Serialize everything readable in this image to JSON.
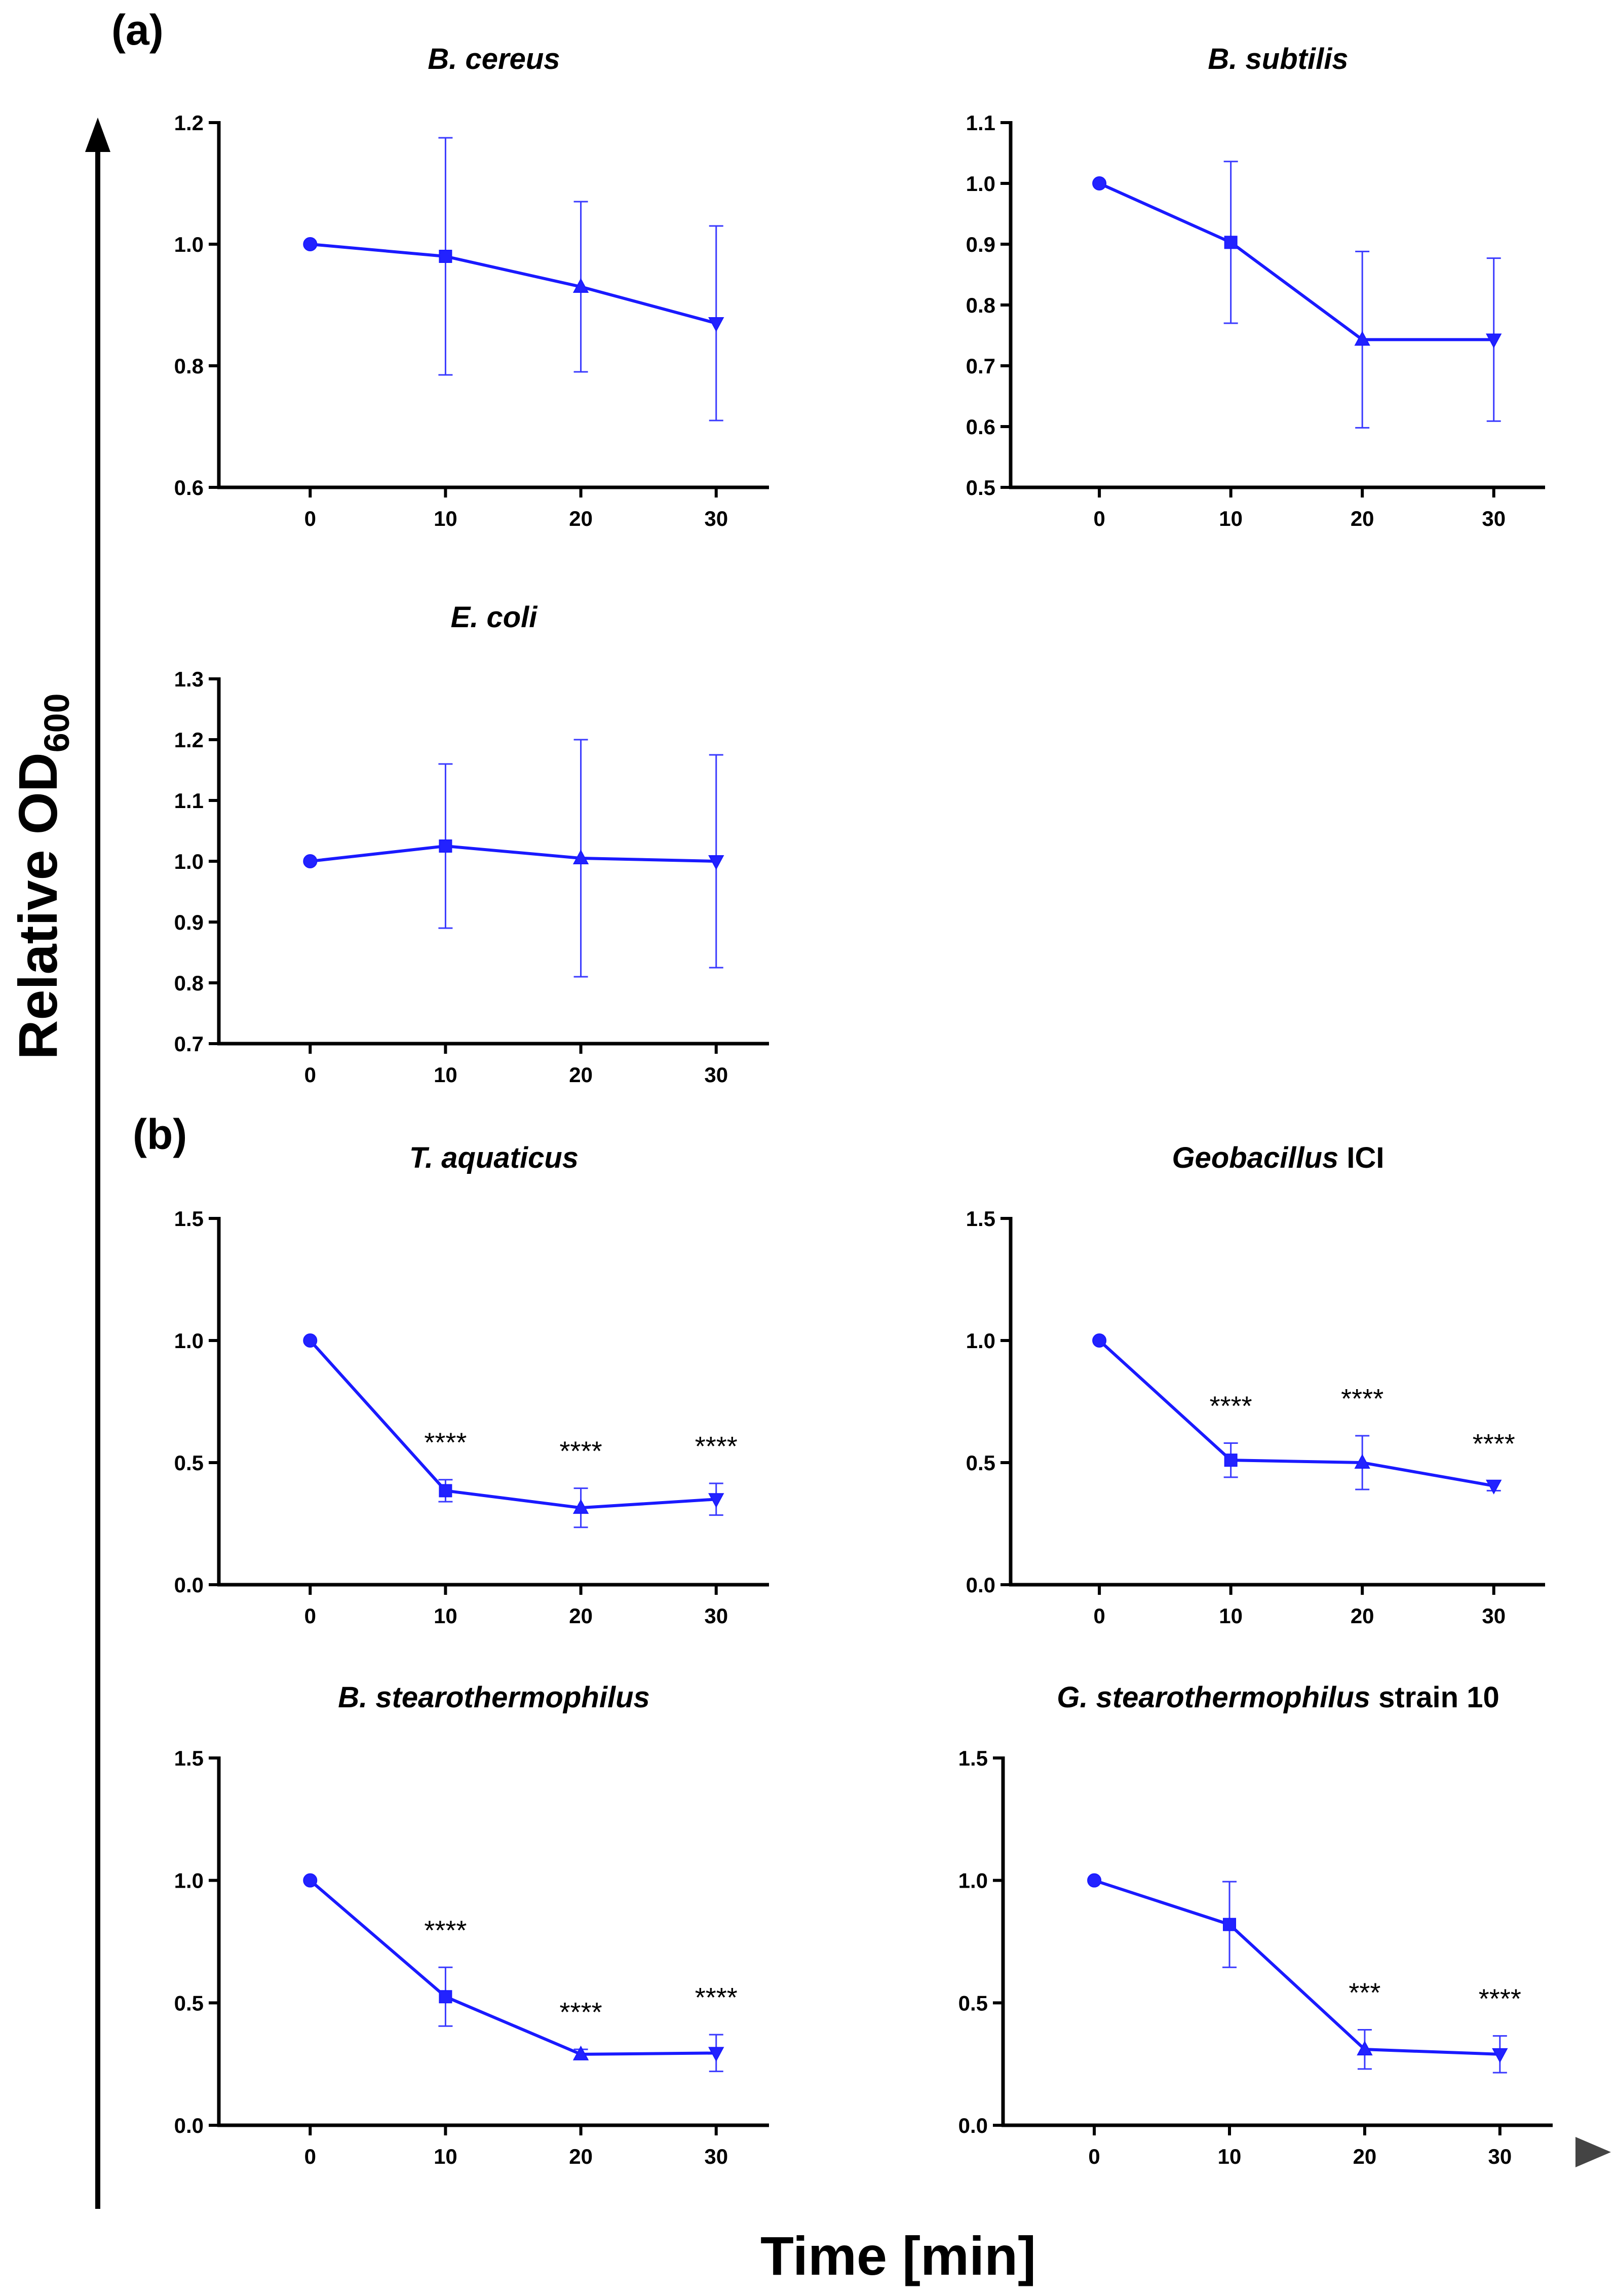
{
  "panel_labels": [
    "(a)",
    "(b)"
  ],
  "y_axis_title": {
    "main": "Relative OD",
    "subscript": "600"
  },
  "x_axis_title": "Time [min]",
  "colors": {
    "series": "#1a1aff",
    "axis": "#000000"
  },
  "chart_data": [
    {
      "id": "b-cereus",
      "type": "line",
      "title_italic": "B. cereus",
      "title_rest": "",
      "x": [
        0,
        10,
        20,
        30
      ],
      "values": [
        1.0,
        0.98,
        0.93,
        0.87
      ],
      "err": [
        0,
        0.195,
        0.14,
        0.16
      ],
      "markers": [
        "circle",
        "square",
        "triangle-up",
        "triangle-down"
      ],
      "ylim": [
        0.6,
        1.2
      ],
      "yticks": [
        0.6,
        0.8,
        1.0,
        1.2
      ],
      "ytick_labels": [
        "0.6",
        "0.8",
        "1.0",
        "1.2"
      ],
      "xticks": [
        "0",
        "10",
        "20",
        "30"
      ],
      "significance": [
        "",
        "",
        "",
        ""
      ]
    },
    {
      "id": "b-subtilis",
      "type": "line",
      "title_italic": "B. subtilis",
      "title_rest": "",
      "x": [
        0,
        10,
        20,
        30
      ],
      "values": [
        1.0,
        0.903,
        0.743,
        0.743
      ],
      "err": [
        0,
        0.133,
        0.145,
        0.134
      ],
      "markers": [
        "circle",
        "square",
        "triangle-up",
        "triangle-down"
      ],
      "ylim": [
        0.5,
        1.1
      ],
      "yticks": [
        0.5,
        0.6,
        0.7,
        0.8,
        0.9,
        1.0,
        1.1
      ],
      "ytick_labels": [
        "0.5",
        "0.6",
        "0.7",
        "0.8",
        "0.9",
        "1.0",
        "1.1"
      ],
      "xticks": [
        "0",
        "10",
        "20",
        "30"
      ],
      "significance": [
        "",
        "",
        "",
        ""
      ]
    },
    {
      "id": "e-coli",
      "type": "line",
      "title_italic": "E. coli",
      "title_rest": "",
      "x": [
        0,
        10,
        20,
        30
      ],
      "values": [
        1.0,
        1.025,
        1.005,
        1.0
      ],
      "err": [
        0,
        0.135,
        0.195,
        0.175
      ],
      "markers": [
        "circle",
        "square",
        "triangle-up",
        "triangle-down"
      ],
      "ylim": [
        0.7,
        1.3
      ],
      "yticks": [
        0.7,
        0.8,
        0.9,
        1.0,
        1.1,
        1.2,
        1.3
      ],
      "ytick_labels": [
        "0.7",
        "0.8",
        "0.9",
        "1.0",
        "1.1",
        "1.2",
        "1.3"
      ],
      "xticks": [
        "0",
        "10",
        "20",
        "30"
      ],
      "significance": [
        "",
        "",
        "",
        ""
      ]
    },
    {
      "id": "t-aquaticus",
      "type": "line",
      "title_italic": "T. aquaticus",
      "title_rest": "",
      "x": [
        0,
        10,
        20,
        30
      ],
      "values": [
        1.0,
        0.385,
        0.315,
        0.35
      ],
      "err": [
        0,
        0.045,
        0.08,
        0.065
      ],
      "markers": [
        "circle",
        "square",
        "triangle-up",
        "triangle-down"
      ],
      "ylim": [
        0.0,
        1.5
      ],
      "yticks": [
        0.0,
        0.5,
        1.0,
        1.5
      ],
      "ytick_labels": [
        "0.0",
        "0.5",
        "1.0",
        "1.5"
      ],
      "xticks": [
        "0",
        "10",
        "20",
        "30"
      ],
      "significance": [
        "",
        "****",
        "****",
        "****"
      ]
    },
    {
      "id": "geobacillus-ici",
      "type": "line",
      "title_italic": "Geobacillus",
      "title_rest": " ICI",
      "x": [
        0,
        10,
        20,
        30
      ],
      "values": [
        1.0,
        0.51,
        0.5,
        0.405
      ],
      "err": [
        0,
        0.07,
        0.11,
        0.02
      ],
      "markers": [
        "circle",
        "square",
        "triangle-up",
        "triangle-down"
      ],
      "ylim": [
        0.0,
        1.5
      ],
      "yticks": [
        0.0,
        0.5,
        1.0,
        1.5
      ],
      "ytick_labels": [
        "0.0",
        "0.5",
        "1.0",
        "1.5"
      ],
      "xticks": [
        "0",
        "10",
        "20",
        "30"
      ],
      "significance": [
        "",
        "****",
        "****",
        "****"
      ]
    },
    {
      "id": "b-stearothermophilus",
      "type": "line",
      "title_italic": "B. stearothermophilus",
      "title_rest": "",
      "x": [
        0,
        10,
        20,
        30
      ],
      "values": [
        1.0,
        0.525,
        0.29,
        0.295
      ],
      "err": [
        0,
        0.12,
        0.02,
        0.075
      ],
      "markers": [
        "circle",
        "square",
        "triangle-up",
        "triangle-down"
      ],
      "ylim": [
        0.0,
        1.5
      ],
      "yticks": [
        0.0,
        0.5,
        1.0,
        1.5
      ],
      "ytick_labels": [
        "0.0",
        "0.5",
        "1.0",
        "1.5"
      ],
      "xticks": [
        "0",
        "10",
        "20",
        "30"
      ],
      "significance": [
        "",
        "****",
        "****",
        "****"
      ]
    },
    {
      "id": "g-stearothermophilus-10",
      "type": "line",
      "title_italic": "G. stearothermophilus",
      "title_rest": " strain 10",
      "x": [
        0,
        10,
        20,
        30
      ],
      "values": [
        1.0,
        0.82,
        0.31,
        0.29
      ],
      "err": [
        0,
        0.175,
        0.08,
        0.075
      ],
      "markers": [
        "circle",
        "square",
        "triangle-up",
        "triangle-down"
      ],
      "ylim": [
        0.0,
        1.5
      ],
      "yticks": [
        0.0,
        0.5,
        1.0,
        1.5
      ],
      "ytick_labels": [
        "0.0",
        "0.5",
        "1.0",
        "1.5"
      ],
      "xticks": [
        "0",
        "10",
        "20",
        "30"
      ],
      "significance": [
        "",
        "",
        "***",
        "****"
      ]
    }
  ]
}
